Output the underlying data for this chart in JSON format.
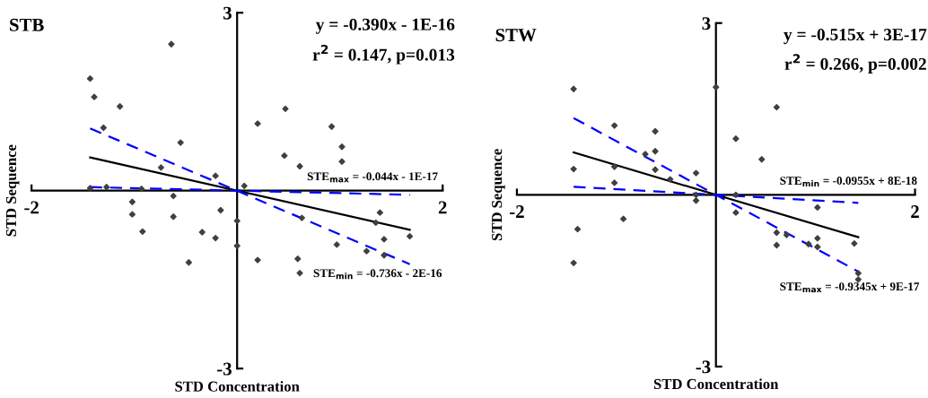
{
  "chart_data": [
    {
      "type": "scatter",
      "title": "STB",
      "xlabel": "STD Concentration",
      "ylabel": "STD Sequence",
      "xlim": [
        -2,
        2
      ],
      "ylim": [
        -3,
        3
      ],
      "xticks": [
        -2,
        2
      ],
      "yticks": [
        3,
        -3
      ],
      "annotations": [
        "y = -0.390x - 1E-16",
        "r$^{2}$ = 0.147, p=0.013",
        "STE$_{max}$ = -0.044x - 1E-17",
        "STE$_{min}$ = -0.736x - 2E-16"
      ],
      "series": [
        {
          "color": "#404040",
          "marker": "diamond",
          "x": [
            -1.43,
            -1.39,
            -1.14,
            -1.3,
            -0.64,
            -0.55,
            -0.74,
            -0.21,
            -1.43,
            -1.27,
            -0.93,
            -0.62,
            -1.02,
            -1.02,
            -0.62,
            -0.16,
            -0.92,
            -0.34,
            -0.21,
            -0.47,
            0,
            0,
            0.07,
            0.2,
            0.47,
            0.46,
            0.61,
            0.92,
            1.02,
            1.02,
            0.2,
            0.59,
            0.61,
            0.63,
            0.97,
            1.26,
            1.35,
            1.39,
            1.43,
            1.43,
            1.68
          ],
          "values": [
            1.89,
            1.58,
            1.42,
            1.06,
            2.47,
            0.81,
            0.39,
            0.25,
            0.04,
            0.06,
            0.03,
            -0.09,
            -0.19,
            -0.4,
            -0.44,
            -0.33,
            -0.69,
            -0.7,
            -0.8,
            -1.21,
            -0.51,
            -0.93,
            0.08,
            1.13,
            1.38,
            0.59,
            0.41,
            1.08,
            0.74,
            0.49,
            -1.17,
            -1.15,
            -1.39,
            -0.46,
            -0.91,
            -1.02,
            -0.54,
            -0.37,
            -0.82,
            -1.09,
            -0.77
          ]
        },
        {
          "type": "line",
          "color": "#000000",
          "line_style": "solid",
          "x": [
            -1.43,
            1.68
          ],
          "values": [
            0.56,
            -0.66
          ]
        },
        {
          "type": "line",
          "color": "#0000ff",
          "line_style": "dashed",
          "x": [
            -1.43,
            1.68
          ],
          "values": [
            0.06,
            -0.07
          ]
        },
        {
          "type": "line",
          "color": "#0000ff",
          "line_style": "dashed",
          "x": [
            -1.43,
            1.68
          ],
          "values": [
            1.05,
            -1.24
          ]
        }
      ]
    },
    {
      "type": "scatter",
      "title": "STW",
      "xlabel": "STD Concentration",
      "ylabel": "STD Sequence",
      "xlim": [
        -2,
        2
      ],
      "ylim": [
        -3,
        3
      ],
      "xticks": [
        -2,
        2
      ],
      "yticks": [
        3,
        -3
      ],
      "annotations": [
        "y = -0.515x + 3E-17",
        "r$^{2}$ = 0.266, p=0.002",
        "STE$_{min}$ = -0.0955x + 8E-18",
        "STE$_{max}$ = -0.9345x + 9E-17"
      ],
      "series": [
        {
          "color": "#404040",
          "marker": "diamond",
          "x": [
            -1.43,
            -1.43,
            -1.39,
            -1.43,
            -1.02,
            -1.02,
            -1.02,
            -0.93,
            -0.71,
            -0.61,
            -0.61,
            -0.61,
            -0.46,
            -0.2,
            -0.2,
            -0.2,
            0,
            0.2,
            0.2,
            0.2,
            0.46,
            0.61,
            0.61,
            0.61,
            0.71,
            0.93,
            1.02,
            1.02,
            1.02,
            1.39,
            1.43,
            1.43
          ],
          "values": [
            1.85,
            0.45,
            -0.6,
            -1.19,
            1.21,
            0.49,
            0.21,
            -0.42,
            0.71,
            1.11,
            0.76,
            0.44,
            0.27,
            0.38,
            0.0,
            -0.1,
            1.88,
            0.98,
            0.0,
            -0.31,
            0.62,
            1.53,
            -0.66,
            -0.88,
            -0.7,
            -0.86,
            -0.22,
            -0.76,
            -0.91,
            -0.85,
            -1.37,
            -1.48
          ]
        },
        {
          "type": "line",
          "color": "#000000",
          "line_style": "solid",
          "x": [
            -1.43,
            1.43
          ],
          "values": [
            0.74,
            -0.74
          ]
        },
        {
          "type": "line",
          "color": "#0000ff",
          "line_style": "dashed",
          "x": [
            -1.43,
            1.43
          ],
          "values": [
            1.34,
            -1.34
          ]
        },
        {
          "type": "line",
          "color": "#0000ff",
          "line_style": "dashed",
          "x": [
            -1.43,
            1.43
          ],
          "values": [
            0.14,
            -0.14
          ]
        }
      ]
    }
  ]
}
